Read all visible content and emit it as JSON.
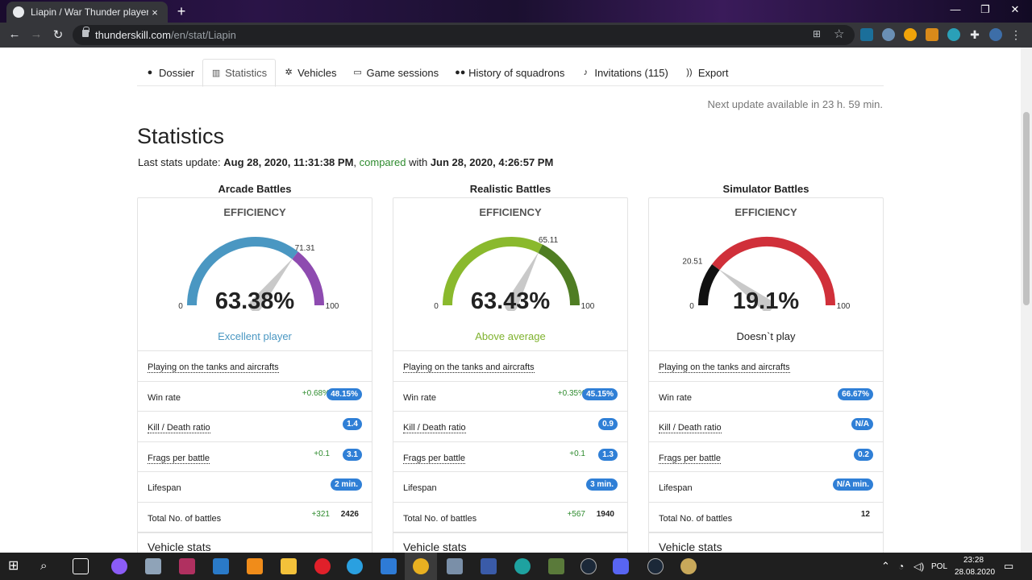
{
  "browser": {
    "tab_title": "Liapin / War Thunder player stati",
    "tab_close": "×",
    "new_tab": "+",
    "url_host": "thunderskill.com",
    "url_path": "/en/stat/Liapin"
  },
  "nav_tabs": [
    {
      "label": "Dossier",
      "icon": "user-icon"
    },
    {
      "label": "Statistics",
      "icon": "chart-icon",
      "active": true
    },
    {
      "label": "Vehicles",
      "icon": "gear-icon"
    },
    {
      "label": "Game sessions",
      "icon": "monitor-icon"
    },
    {
      "label": "History of squadrons",
      "icon": "users-icon"
    },
    {
      "label": "Invitations (115)",
      "icon": "bell-icon"
    },
    {
      "label": "Export",
      "icon": "rss-icon"
    }
  ],
  "next_update": "Next update available in 23 h. 59 min.",
  "page_title": "Statistics",
  "last_update": {
    "prefix": "Last stats update:",
    "date": "Aug 28, 2020, 11:31:38 PM",
    "compared": "compared",
    "with": "with",
    "compare_date": "Jun 28, 2020, 4:26:57 PM"
  },
  "columns": [
    {
      "title": "Arcade Battles",
      "efficiency_label": "EFFICIENCY",
      "percent": "63.38%",
      "percent_value": 63.38,
      "top_value": "71.31",
      "top_value_num": 71.31,
      "min": "0",
      "max": "100",
      "rating": "Excellent player",
      "rating_color": "#4a97c2",
      "gauge_colors": [
        "#4a97c2",
        "#8e4bb0"
      ],
      "rows": [
        {
          "label": "Playing on the tanks and aircrafts",
          "dotted": true
        },
        {
          "label": "Win rate",
          "delta": "+0.68%",
          "badge": "48.15%"
        },
        {
          "label": "Kill / Death ratio",
          "dotted": true,
          "badge": "1.4"
        },
        {
          "label": "Frags per battle",
          "dotted": true,
          "delta": "+0.1",
          "badge": "3.1"
        },
        {
          "label": "Lifespan",
          "badge": "2 min."
        },
        {
          "label": "Total No. of battles",
          "delta": "+321",
          "plain": "2426"
        }
      ],
      "vehicle_stats": "Vehicle stats"
    },
    {
      "title": "Realistic Battles",
      "efficiency_label": "EFFICIENCY",
      "percent": "63.43%",
      "percent_value": 63.43,
      "top_value": "65.11",
      "top_value_num": 65.11,
      "min": "0",
      "max": "100",
      "rating": "Above average",
      "rating_color": "#7fb22e",
      "gauge_colors": [
        "#8ab92d",
        "#4f7d23"
      ],
      "rows": [
        {
          "label": "Playing on the tanks and aircrafts",
          "dotted": true
        },
        {
          "label": "Win rate",
          "delta": "+0.35%",
          "badge": "45.15%"
        },
        {
          "label": "Kill / Death ratio",
          "dotted": true,
          "badge": "0.9"
        },
        {
          "label": "Frags per battle",
          "dotted": true,
          "delta": "+0.1",
          "badge": "1.3"
        },
        {
          "label": "Lifespan",
          "badge": "3 min."
        },
        {
          "label": "Total No. of battles",
          "delta": "+567",
          "plain": "1940"
        }
      ],
      "vehicle_stats": "Vehicle stats"
    },
    {
      "title": "Simulator Battles",
      "efficiency_label": "EFFICIENCY",
      "percent": "19.1%",
      "percent_value": 19.1,
      "top_value": "20.51",
      "top_value_num": 20.51,
      "min": "0",
      "max": "100",
      "rating": "Doesn`t play",
      "rating_color": "#222222",
      "gauge_colors": [
        "#111111",
        "#d0303a"
      ],
      "rows": [
        {
          "label": "Playing on the tanks and aircrafts",
          "dotted": true
        },
        {
          "label": "Win rate",
          "badge": "66.67%"
        },
        {
          "label": "Kill / Death ratio",
          "dotted": true,
          "badge": "N/A"
        },
        {
          "label": "Frags per battle",
          "dotted": true,
          "badge": "0.2"
        },
        {
          "label": "Lifespan",
          "badge": "N/A min."
        },
        {
          "label": "Total No. of battles",
          "plain": "12"
        }
      ],
      "vehicle_stats": "Vehicle stats"
    }
  ],
  "taskbar": {
    "language": "POL",
    "time": "23:28",
    "date": "28.08.2020"
  }
}
